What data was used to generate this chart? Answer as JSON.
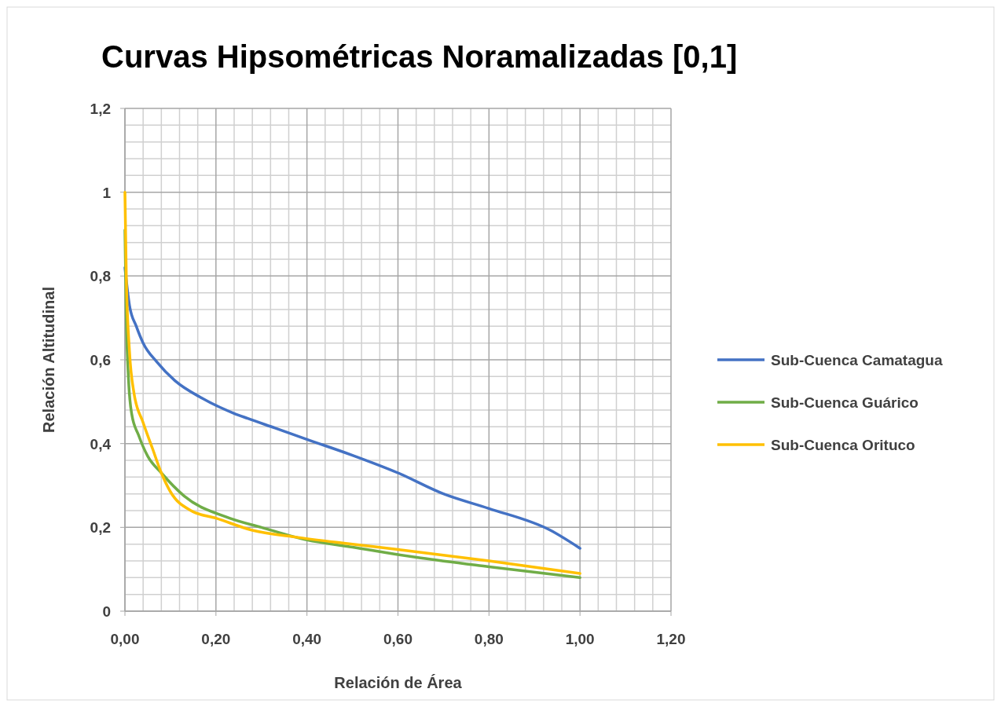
{
  "chart_data": {
    "type": "line",
    "title": "Curvas Hipsométricas Noramalizadas [0,1]",
    "xlabel": "Relación de Área",
    "ylabel": "Relación Altitudinal",
    "xlim": [
      0,
      1.2
    ],
    "ylim": [
      0,
      1.2
    ],
    "xticks": [
      {
        "value": 0,
        "label": "0,00"
      },
      {
        "value": 0.2,
        "label": "0,20"
      },
      {
        "value": 0.4,
        "label": "0,40"
      },
      {
        "value": 0.6,
        "label": "0,60"
      },
      {
        "value": 0.8,
        "label": "0,80"
      },
      {
        "value": 1,
        "label": "1,00"
      },
      {
        "value": 1.2,
        "label": "1,20"
      }
    ],
    "yticks": [
      0,
      {
        "value": 0.2,
        "label": "0,2"
      },
      {
        "value": 0.4,
        "label": "0,4"
      },
      {
        "value": 0.6,
        "label": "0,6"
      },
      {
        "value": 0.8,
        "label": "0,8"
      },
      1,
      {
        "value": 1.2,
        "label": "1,2"
      }
    ],
    "grid": true,
    "legend": "right",
    "marker": "none",
    "line_style": "solid",
    "series": [
      {
        "name": "Sub-Cuenca Camatagua",
        "color": "#4472c4",
        "x": [
          0,
          0.01,
          0.025,
          0.04,
          0.07,
          0.11,
          0.17,
          0.24,
          0.27,
          0.33,
          0.4,
          0.5,
          0.6,
          0.7,
          0.8,
          0.935,
          1.0
        ],
        "values": [
          0.82,
          0.73,
          0.68,
          0.64,
          0.595,
          0.55,
          0.508,
          0.472,
          0.46,
          0.437,
          0.41,
          0.372,
          0.33,
          0.28,
          0.245,
          0.193,
          0.15
        ]
      },
      {
        "name": "Sub-Cuenca Guárico",
        "color": "#70ad47",
        "x": [
          0,
          0.003,
          0.008,
          0.015,
          0.03,
          0.05,
          0.08,
          0.13,
          0.23,
          0.3,
          0.4,
          0.5,
          0.6,
          0.65,
          0.8,
          1.0
        ],
        "values": [
          0.91,
          0.7,
          0.55,
          0.47,
          0.42,
          0.37,
          0.33,
          0.275,
          0.222,
          0.2,
          0.17,
          0.153,
          0.135,
          0.127,
          0.106,
          0.08
        ]
      },
      {
        "name": "Sub-Cuenca Orituco",
        "color": "#ffc000",
        "x": [
          0,
          0.003,
          0.01,
          0.02,
          0.04,
          0.06,
          0.08,
          0.1,
          0.145,
          0.2,
          0.28,
          0.38,
          0.5,
          0.6,
          0.8,
          1.0
        ],
        "values": [
          1.0,
          0.8,
          0.62,
          0.52,
          0.45,
          0.39,
          0.33,
          0.285,
          0.24,
          0.222,
          0.193,
          0.176,
          0.16,
          0.147,
          0.12,
          0.09
        ]
      }
    ]
  }
}
